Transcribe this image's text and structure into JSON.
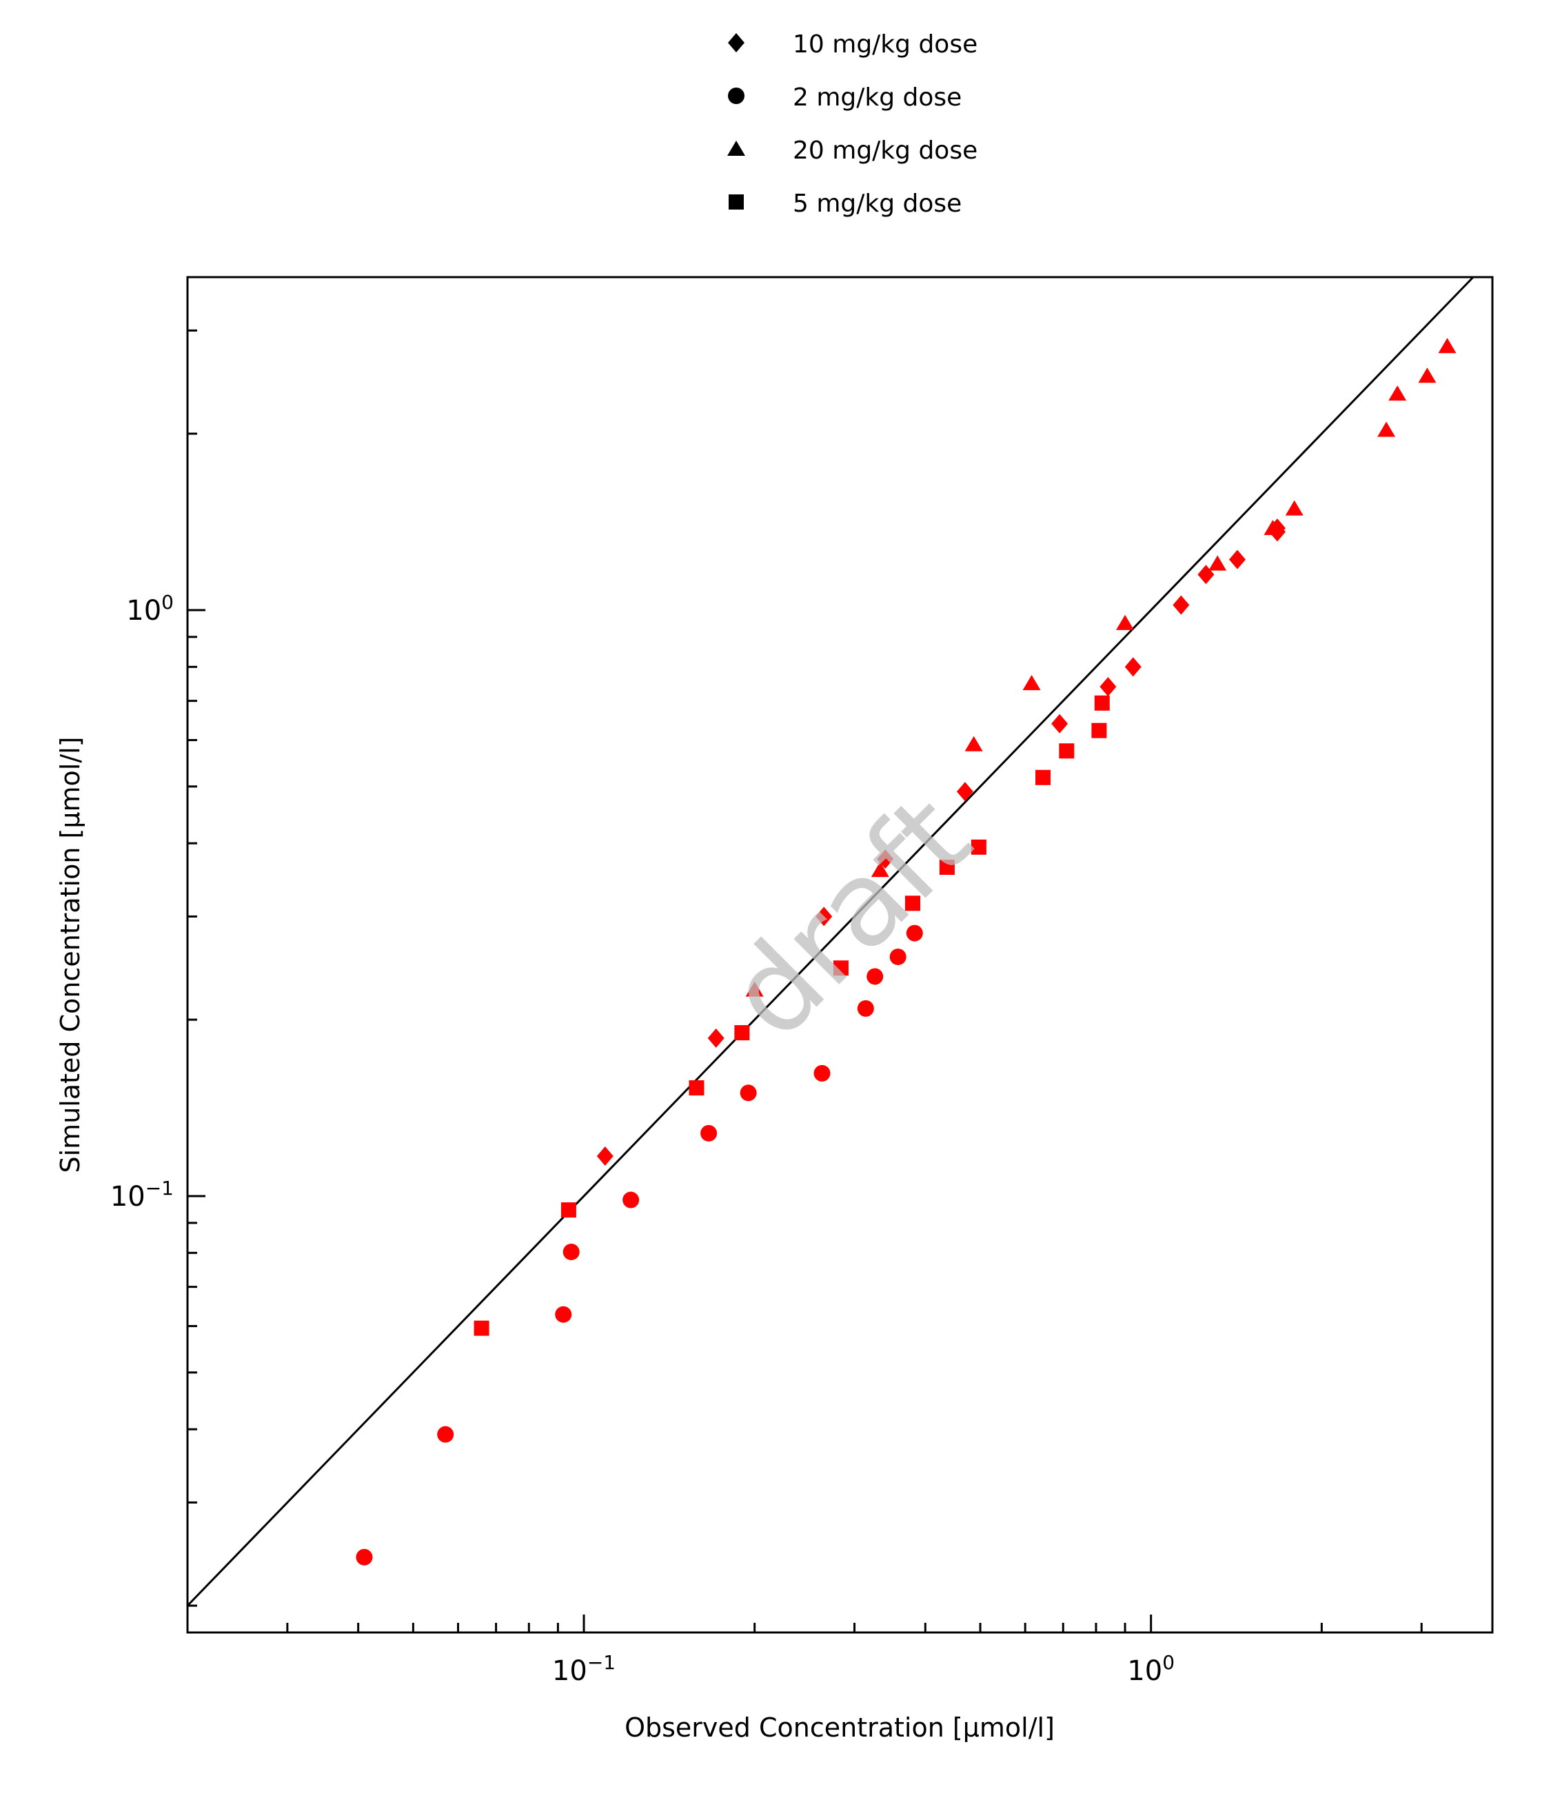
{
  "chart_data": {
    "type": "scatter",
    "xlabel": "Observed Concentration [µmol/l]",
    "ylabel": "Simulated Concentration [µmol/l]",
    "xscale": "log",
    "yscale": "log",
    "xlim": [
      0.02,
      4.0
    ],
    "ylim": [
      0.018,
      3.7
    ],
    "x_ticks": [
      {
        "value": 0.1,
        "base": "10",
        "exp": "−1"
      },
      {
        "value": 1,
        "base": "10",
        "exp": "0"
      }
    ],
    "y_ticks": [
      {
        "value": 0.1,
        "base": "10",
        "exp": "−1"
      },
      {
        "value": 1,
        "base": "10",
        "exp": "0"
      }
    ],
    "identity_line": true,
    "grid": false,
    "legend_position": "top-center",
    "watermark": "draft",
    "marker_color": "#ff0000",
    "series": [
      {
        "name": "10 mg/kg dose",
        "marker": "diamond",
        "points": [
          [
            0.109,
            0.117
          ],
          [
            0.171,
            0.186
          ],
          [
            0.265,
            0.3
          ],
          [
            0.34,
            0.376
          ],
          [
            0.47,
            0.49
          ],
          [
            0.69,
            0.64
          ],
          [
            0.84,
            0.74
          ],
          [
            0.93,
            0.8
          ],
          [
            1.13,
            1.02
          ],
          [
            1.25,
            1.15
          ],
          [
            1.42,
            1.22
          ],
          [
            1.67,
            1.36
          ],
          [
            1.67,
            1.38
          ]
        ]
      },
      {
        "name": "2 mg/kg dose",
        "marker": "circle",
        "points": [
          [
            0.041,
            0.0242
          ],
          [
            0.057,
            0.0392
          ],
          [
            0.092,
            0.0628
          ],
          [
            0.095,
            0.0803
          ],
          [
            0.121,
            0.0985
          ],
          [
            0.166,
            0.128
          ],
          [
            0.195,
            0.15
          ],
          [
            0.263,
            0.162
          ],
          [
            0.314,
            0.209
          ],
          [
            0.326,
            0.237
          ],
          [
            0.358,
            0.256
          ],
          [
            0.383,
            0.281
          ]
        ]
      },
      {
        "name": "20 mg/kg dose",
        "marker": "triangle",
        "points": [
          [
            0.2,
            0.225
          ],
          [
            0.333,
            0.36
          ],
          [
            0.487,
            0.59
          ],
          [
            0.616,
            0.75
          ],
          [
            0.9,
            0.95
          ],
          [
            1.31,
            1.2
          ],
          [
            1.64,
            1.38
          ],
          [
            1.79,
            1.49
          ],
          [
            2.6,
            2.03
          ],
          [
            2.72,
            2.34
          ],
          [
            3.07,
            2.51
          ],
          [
            3.33,
            2.82
          ]
        ]
      },
      {
        "name": "5 mg/kg dose",
        "marker": "square",
        "points": [
          [
            0.066,
            0.0595
          ],
          [
            0.094,
            0.0947
          ],
          [
            0.158,
            0.153
          ],
          [
            0.19,
            0.19
          ],
          [
            0.284,
            0.245
          ],
          [
            0.38,
            0.316
          ],
          [
            0.437,
            0.364
          ],
          [
            0.497,
            0.394
          ],
          [
            0.645,
            0.518
          ],
          [
            0.71,
            0.575
          ],
          [
            0.81,
            0.623
          ],
          [
            0.82,
            0.694
          ]
        ]
      }
    ]
  }
}
